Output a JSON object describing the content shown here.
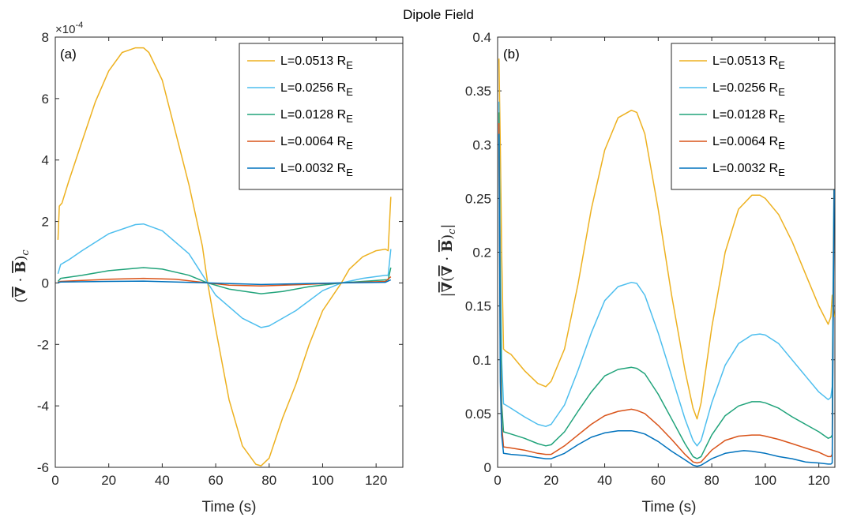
{
  "figure": {
    "title": "Dipole Field"
  },
  "chart_data": [
    {
      "type": "line",
      "panel_label": "(a)",
      "xlabel": "Time (s)",
      "ylabel": "(∇̄ · B̄)c",
      "xlim": [
        0,
        130
      ],
      "ylim": [
        -6,
        8
      ],
      "y_exponent": "×10-4",
      "xticks": [
        0,
        20,
        40,
        60,
        80,
        100,
        120
      ],
      "yticks": [
        -6,
        -4,
        -2,
        0,
        2,
        4,
        6,
        8
      ],
      "grid": false,
      "legend_position": "top-right",
      "series": [
        {
          "name": "L=0.0513 RE",
          "color": "#EDB120",
          "x": [
            1,
            1.5,
            2.5,
            5,
            10,
            15,
            20,
            25,
            30,
            33,
            35,
            40,
            45,
            50,
            55,
            57,
            60,
            65,
            70,
            75,
            77,
            80,
            85,
            90,
            95,
            100,
            107,
            110,
            115,
            120,
            123.5,
            124.5,
            125.5
          ],
          "y": [
            1.4,
            2.5,
            2.6,
            3.3,
            4.6,
            5.9,
            6.9,
            7.5,
            7.65,
            7.65,
            7.5,
            6.6,
            4.9,
            3.2,
            1.2,
            0,
            -1.5,
            -3.8,
            -5.3,
            -5.9,
            -5.95,
            -5.7,
            -4.4,
            -3.3,
            -2.0,
            -0.9,
            0,
            0.45,
            0.85,
            1.05,
            1.1,
            1.05,
            2.8
          ]
        },
        {
          "name": "L=0.0256 RE",
          "color": "#4DBEEE",
          "x": [
            1,
            2,
            5,
            10,
            20,
            30,
            33,
            40,
            50,
            57,
            60,
            70,
            77,
            80,
            90,
            100,
            107,
            115,
            123.5,
            124.5,
            125.5
          ],
          "y": [
            0.3,
            0.6,
            0.75,
            1.05,
            1.6,
            1.9,
            1.92,
            1.7,
            0.95,
            0,
            -0.4,
            -1.15,
            -1.45,
            -1.4,
            -0.9,
            -0.25,
            0,
            0.15,
            0.25,
            0.25,
            1.1
          ]
        },
        {
          "name": "L=0.0128 RE",
          "color": "#20A37A",
          "x": [
            1,
            2,
            10,
            20,
            33,
            40,
            50,
            57,
            65,
            77,
            85,
            95,
            107,
            115,
            123.5,
            124.5,
            125.5
          ],
          "y": [
            0.05,
            0.15,
            0.25,
            0.4,
            0.5,
            0.45,
            0.25,
            0,
            -0.2,
            -0.35,
            -0.28,
            -0.12,
            0,
            0.05,
            0.1,
            0.1,
            0.5
          ]
        },
        {
          "name": "L=0.0064 RE",
          "color": "#D95319",
          "x": [
            1,
            2,
            10,
            20,
            33,
            45,
            57,
            65,
            77,
            90,
            107,
            123.5,
            125.5
          ],
          "y": [
            0.02,
            0.05,
            0.08,
            0.12,
            0.15,
            0.12,
            0,
            -0.07,
            -0.1,
            -0.06,
            0,
            0.05,
            0.2
          ]
        },
        {
          "name": "L=0.0032 RE",
          "color": "#0072BD",
          "x": [
            1,
            2,
            20,
            33,
            57,
            77,
            107,
            123.5,
            125.5
          ],
          "y": [
            0.01,
            0.03,
            0.05,
            0.06,
            0,
            -0.05,
            0,
            0.02,
            0.1
          ]
        }
      ]
    },
    {
      "type": "line",
      "panel_label": "(b)",
      "xlabel": "Time (s)",
      "ylabel": "|∇̄(∇̄ · B̄)c|",
      "xlim": [
        0,
        126
      ],
      "ylim": [
        0,
        0.4
      ],
      "xticks": [
        0,
        20,
        40,
        60,
        80,
        100,
        120
      ],
      "yticks": [
        0,
        0.05,
        0.1,
        0.15,
        0.2,
        0.25,
        0.3,
        0.35,
        0.4
      ],
      "grid": false,
      "legend_position": "top-right",
      "series": [
        {
          "name": "L=0.0513 RE",
          "color": "#EDB120",
          "x": [
            0.5,
            1,
            1.5,
            2.2,
            3,
            5,
            10,
            15,
            18,
            20,
            25,
            30,
            35,
            40,
            45,
            50,
            52,
            55,
            60,
            65,
            70,
            73,
            74.5,
            76,
            80,
            85,
            90,
            95,
            98,
            100,
            105,
            110,
            115,
            120,
            123.5,
            124.5,
            125,
            125.8
          ],
          "y": [
            0.38,
            0.3,
            0.2,
            0.11,
            0.108,
            0.105,
            0.09,
            0.078,
            0.075,
            0.08,
            0.11,
            0.17,
            0.24,
            0.295,
            0.325,
            0.332,
            0.33,
            0.31,
            0.24,
            0.16,
            0.09,
            0.055,
            0.045,
            0.06,
            0.13,
            0.2,
            0.24,
            0.253,
            0.253,
            0.25,
            0.235,
            0.21,
            0.18,
            0.15,
            0.133,
            0.14,
            0.16,
            0.14
          ]
        },
        {
          "name": "L=0.0256 RE",
          "color": "#4DBEEE",
          "x": [
            0.5,
            1,
            1.5,
            2.2,
            3,
            5,
            10,
            15,
            18,
            20,
            25,
            30,
            35,
            40,
            45,
            50,
            52,
            55,
            60,
            65,
            70,
            73,
            74.5,
            76,
            80,
            85,
            90,
            95,
            98,
            100,
            105,
            110,
            115,
            120,
            123.5,
            124.5,
            125,
            125.8
          ],
          "y": [
            0.34,
            0.2,
            0.1,
            0.059,
            0.058,
            0.055,
            0.047,
            0.04,
            0.038,
            0.04,
            0.058,
            0.09,
            0.125,
            0.155,
            0.168,
            0.172,
            0.171,
            0.16,
            0.125,
            0.085,
            0.045,
            0.025,
            0.02,
            0.025,
            0.06,
            0.095,
            0.115,
            0.123,
            0.124,
            0.123,
            0.115,
            0.1,
            0.085,
            0.07,
            0.063,
            0.065,
            0.075,
            0.31
          ]
        },
        {
          "name": "L=0.0128 RE",
          "color": "#20A37A",
          "x": [
            0.5,
            1,
            1.5,
            2.2,
            5,
            10,
            15,
            18,
            20,
            25,
            30,
            35,
            40,
            45,
            50,
            52,
            55,
            60,
            65,
            70,
            73,
            74.5,
            76,
            80,
            85,
            90,
            95,
            98,
            100,
            105,
            110,
            115,
            120,
            123.5,
            124.5,
            125,
            125.8
          ],
          "y": [
            0.33,
            0.15,
            0.06,
            0.033,
            0.031,
            0.027,
            0.022,
            0.02,
            0.021,
            0.033,
            0.052,
            0.07,
            0.085,
            0.091,
            0.093,
            0.092,
            0.087,
            0.068,
            0.045,
            0.022,
            0.01,
            0.008,
            0.01,
            0.03,
            0.048,
            0.057,
            0.061,
            0.061,
            0.06,
            0.055,
            0.047,
            0.04,
            0.033,
            0.027,
            0.028,
            0.03,
            0.3
          ]
        },
        {
          "name": "L=0.0064 RE",
          "color": "#D95319",
          "x": [
            0.5,
            1,
            1.5,
            2.2,
            5,
            10,
            15,
            18,
            20,
            25,
            30,
            35,
            40,
            45,
            50,
            52,
            55,
            60,
            65,
            70,
            73,
            74.5,
            76,
            80,
            85,
            90,
            95,
            98,
            100,
            105,
            110,
            115,
            120,
            123.5,
            124.5,
            125,
            125.8
          ],
          "y": [
            0.32,
            0.1,
            0.04,
            0.019,
            0.018,
            0.016,
            0.013,
            0.012,
            0.012,
            0.02,
            0.03,
            0.04,
            0.048,
            0.052,
            0.054,
            0.053,
            0.05,
            0.039,
            0.026,
            0.012,
            0.005,
            0.004,
            0.005,
            0.016,
            0.025,
            0.029,
            0.03,
            0.03,
            0.029,
            0.026,
            0.022,
            0.018,
            0.014,
            0.01,
            0.01,
            0.012,
            0.29
          ]
        },
        {
          "name": "L=0.0032 RE",
          "color": "#0072BD",
          "x": [
            0.5,
            1,
            1.5,
            2.2,
            5,
            10,
            15,
            18,
            20,
            25,
            30,
            35,
            40,
            45,
            50,
            52,
            55,
            60,
            65,
            70,
            73,
            74.5,
            76,
            80,
            85,
            90,
            92,
            95,
            100,
            105,
            110,
            115,
            120,
            123.5,
            124.5,
            125,
            125.8
          ],
          "y": [
            0.31,
            0.08,
            0.03,
            0.013,
            0.012,
            0.011,
            0.009,
            0.008,
            0.008,
            0.013,
            0.021,
            0.028,
            0.032,
            0.034,
            0.034,
            0.033,
            0.031,
            0.024,
            0.015,
            0.007,
            0.002,
            0.001,
            0.002,
            0.008,
            0.013,
            0.015,
            0.0155,
            0.015,
            0.013,
            0.01,
            0.008,
            0.005,
            0.004,
            0.003,
            0.003,
            0.004,
            0.28
          ]
        }
      ]
    }
  ]
}
